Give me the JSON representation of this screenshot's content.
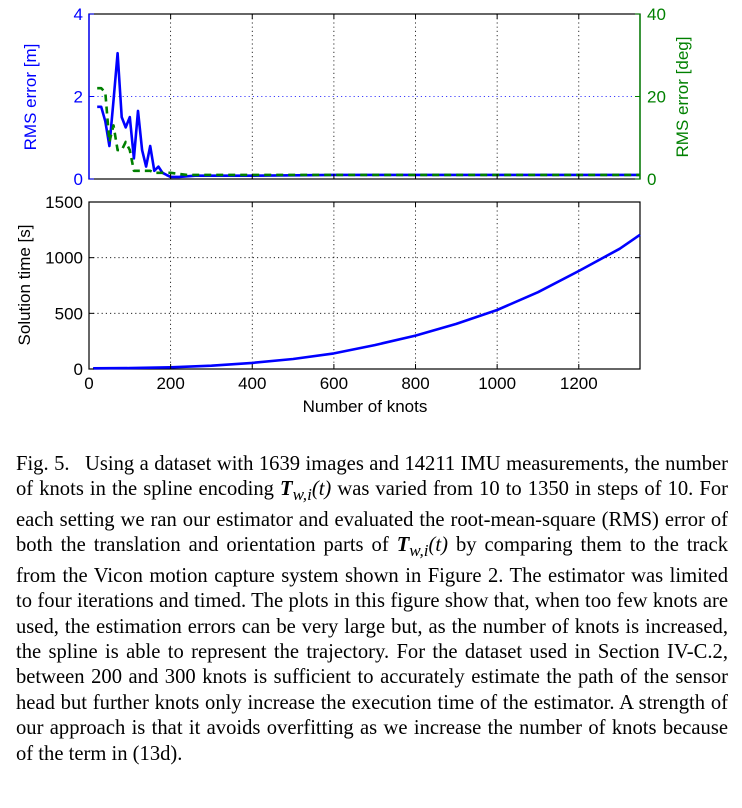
{
  "chart_data": [
    {
      "type": "line",
      "xlabel": "",
      "ylabel": "RMS error [m]",
      "y2label": "RMS error [deg]",
      "xlim": [
        0,
        1350
      ],
      "ylim": [
        0,
        4
      ],
      "y2lim": [
        0,
        40
      ],
      "y_ticks": [
        "0",
        "2",
        "4"
      ],
      "y2_ticks": [
        "0",
        "20",
        "40"
      ],
      "grid": true,
      "colors": {
        "translation": "#0000ff",
        "orientation": "#008000"
      },
      "series": [
        {
          "axis": "left",
          "style": "solid",
          "x": [
            20,
            30,
            40,
            50,
            60,
            70,
            80,
            90,
            100,
            110,
            120,
            130,
            140,
            150,
            160,
            170,
            180,
            190,
            200,
            220,
            260,
            400,
            600,
            800,
            1000,
            1200,
            1350
          ],
          "y": [
            1.75,
            1.75,
            1.4,
            0.8,
            1.9,
            3.05,
            1.5,
            1.25,
            1.5,
            0.5,
            1.65,
            0.7,
            0.3,
            0.8,
            0.2,
            0.3,
            0.15,
            0.1,
            0.05,
            0.05,
            0.08,
            0.08,
            0.1,
            0.1,
            0.1,
            0.1,
            0.1
          ]
        },
        {
          "axis": "right",
          "style": "dashed",
          "x": [
            20,
            30,
            40,
            50,
            60,
            70,
            80,
            90,
            100,
            110,
            120,
            130,
            140,
            150,
            160,
            170,
            180,
            190,
            200,
            240,
            400,
            600,
            800,
            1000,
            1200,
            1350
          ],
          "y": [
            22,
            22,
            21,
            9,
            13,
            7,
            7,
            9,
            7,
            2,
            2,
            2,
            2,
            2,
            1.5,
            1.5,
            1.5,
            1.5,
            1.5,
            1,
            1,
            1,
            1,
            1,
            1,
            1
          ]
        }
      ]
    },
    {
      "type": "line",
      "xlabel": "Number of knots",
      "ylabel": "Solution time [s]",
      "xlim": [
        0,
        1350
      ],
      "ylim": [
        0,
        1500
      ],
      "x_ticks": [
        "0",
        "200",
        "400",
        "600",
        "800",
        "1000",
        "1200"
      ],
      "y_ticks": [
        "0",
        "500",
        "1000",
        "1500"
      ],
      "grid": true,
      "series": [
        {
          "style": "solid",
          "x": [
            10,
            100,
            200,
            300,
            400,
            500,
            600,
            700,
            800,
            900,
            1000,
            1100,
            1200,
            1300,
            1350
          ],
          "y": [
            6,
            8,
            15,
            30,
            55,
            90,
            140,
            215,
            300,
            405,
            530,
            690,
            880,
            1080,
            1205
          ]
        }
      ]
    }
  ],
  "caption": {
    "label": "Fig. 5.",
    "p1": "Using a dataset with 1639 images and 14211 IMU measurements, the number of knots in the spline encoding",
    "math1_base": "T",
    "math1_sub": "w,i",
    "math1_arg": "(t)",
    "p2": "was varied from 10 to 1350 in steps of 10. For each setting we ran our estimator and evaluated the root-mean-square (RMS) error of both the translation and orientation parts of",
    "math2_base": "T",
    "math2_sub": "w,i",
    "math2_arg": "(t)",
    "p3": "by comparing them to the track from the Vicon motion capture system shown in Figure 2. The estimator was limited to four iterations and timed. The plots in this figure show that, when too few knots are used, the estimation errors can be very large but, as the number of knots is increased, the spline is able to represent the trajectory. For the dataset used in Section IV-C.2, between 200 and 300 knots is sufficient to accurately estimate the path of the sensor head but further knots only increase the execution time of the estimator. A strength of our approach is that it avoids overfitting as we increase the number of knots because of the term in (13d)."
  }
}
